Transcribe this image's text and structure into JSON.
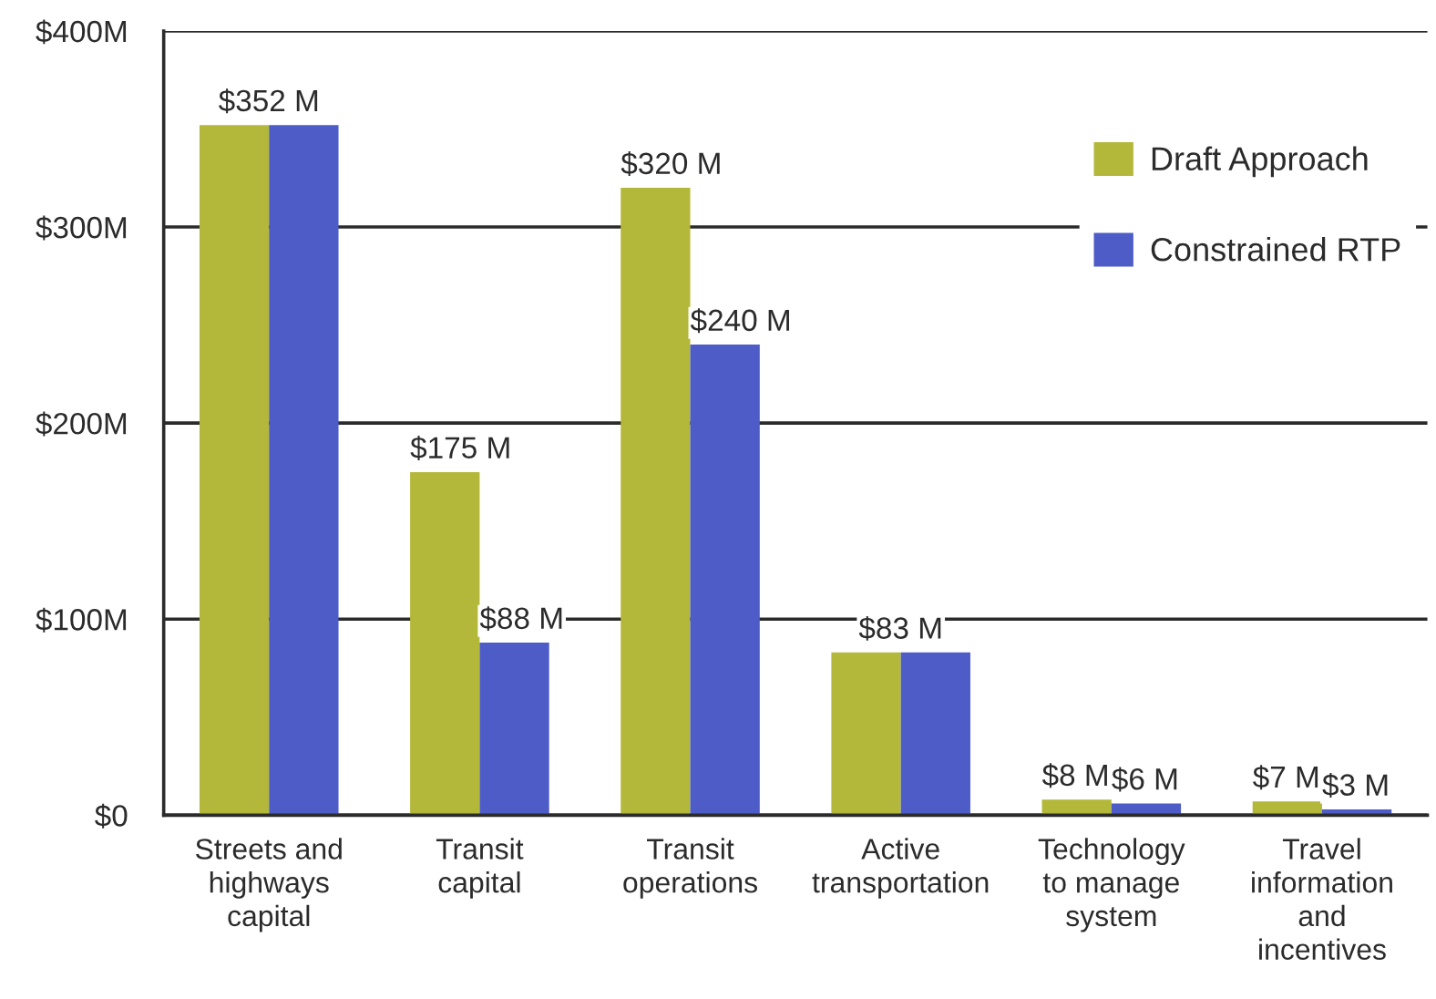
{
  "chart_data": {
    "type": "bar",
    "categories": [
      "Streets and\nhighways\ncapital",
      "Transit\ncapital",
      "Transit\noperations",
      "Active\ntransportation",
      "Technology\nto manage\nsystem",
      "Travel\ninformation\nand\nincentives"
    ],
    "series": [
      {
        "name": "Draft Approach",
        "color": "#b3b83a",
        "values": [
          352,
          175,
          320,
          83,
          8,
          7
        ],
        "value_labels": [
          "$352 M",
          "$175 M",
          "$320 M",
          "$83 M",
          "$8 M",
          "$7 M"
        ]
      },
      {
        "name": "Constrained RTP",
        "color": "#4d5cc6",
        "values": [
          352,
          88,
          240,
          83,
          6,
          3
        ],
        "value_labels": [
          null,
          "$88 M",
          "$240 M",
          null,
          "$6 M",
          "$3 M"
        ]
      }
    ],
    "ylim": [
      0,
      400
    ],
    "yticks": [
      {
        "value": 0,
        "label": "$0"
      },
      {
        "value": 100,
        "label": "$100M"
      },
      {
        "value": 200,
        "label": "$200M"
      },
      {
        "value": 300,
        "label": "$300M"
      },
      {
        "value": 400,
        "label": "$400M"
      }
    ],
    "grid": "y",
    "legend": "top right"
  }
}
